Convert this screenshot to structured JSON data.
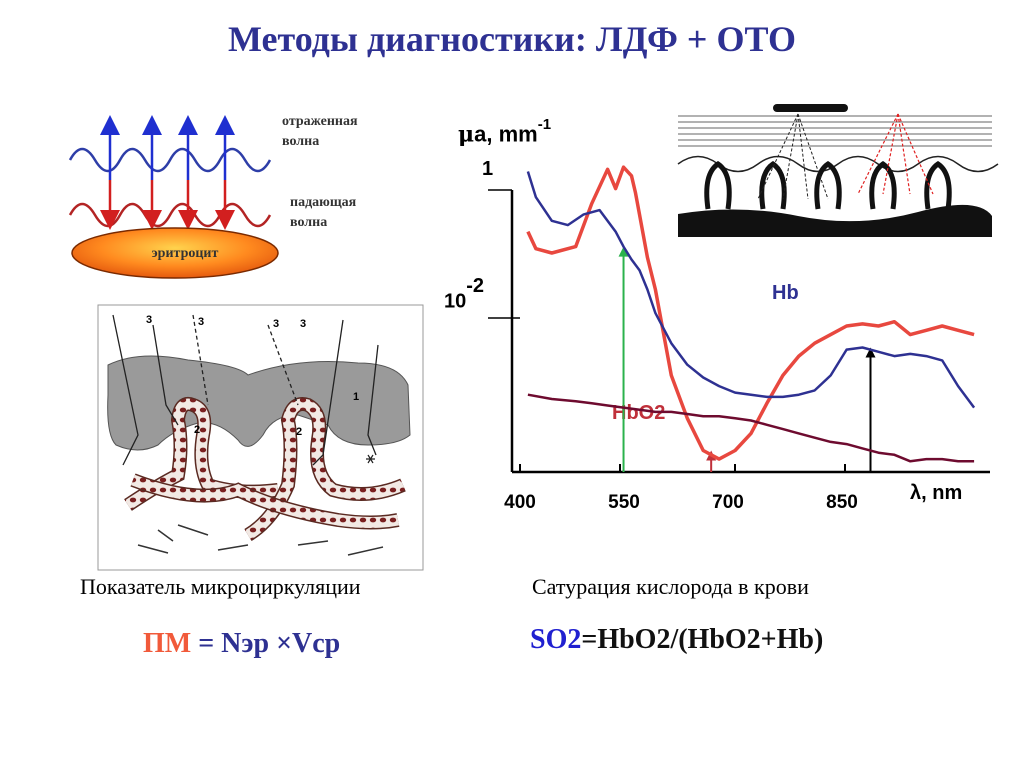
{
  "title": "Методы диагностики:  ЛДФ + ОТО",
  "wave_diagram": {
    "reflected_label_line1": "отраженная",
    "reflected_label_line2": "волна",
    "incident_label_line1": "падающая",
    "incident_label_line2": "волна",
    "cell_label": "эритроцит"
  },
  "tissue_diagram": {
    "labels": [
      "3",
      "3",
      "3",
      "3",
      "2",
      "2",
      "1"
    ]
  },
  "chart": {
    "y_label_symbol": "μ",
    "y_label_main": "a, mm",
    "y_label_exp": "-1",
    "y_tick_1": "1",
    "y_tick_2_base": "10",
    "y_tick_2_exp": "-2",
    "x_ticks": [
      "400",
      "550",
      "700",
      "850"
    ],
    "x_label": "λ, nm",
    "series_labels": {
      "hb": "Hb",
      "hbo2": "HbO2"
    }
  },
  "chart_data": {
    "type": "line",
    "xlabel": "λ, nm",
    "ylabel": "μa, mm-1",
    "x_range": [
      400,
      1000
    ],
    "y_range": [
      0,
      1.5
    ],
    "series": [
      {
        "name": "HbO2",
        "color": "#e8483f",
        "x": [
          420,
          430,
          450,
          480,
          500,
          520,
          530,
          540,
          550,
          555,
          560,
          570,
          580,
          600,
          620,
          640,
          660,
          680,
          700,
          720,
          740,
          760,
          780,
          800,
          820,
          840,
          860,
          880,
          900,
          920,
          940,
          960,
          980
        ],
        "y": [
          1.12,
          1.04,
          1.02,
          1.05,
          1.25,
          1.41,
          1.32,
          1.42,
          1.38,
          1.3,
          1.2,
          1.0,
          0.85,
          0.45,
          0.25,
          0.1,
          0.06,
          0.1,
          0.18,
          0.32,
          0.45,
          0.54,
          0.6,
          0.64,
          0.68,
          0.69,
          0.68,
          0.7,
          0.64,
          0.66,
          0.68,
          0.66,
          0.64
        ]
      },
      {
        "name": "Hb",
        "color": "#2e3192",
        "x": [
          420,
          430,
          450,
          470,
          490,
          510,
          530,
          540,
          550,
          560,
          570,
          580,
          600,
          620,
          640,
          660,
          680,
          700,
          720,
          740,
          760,
          780,
          800,
          820,
          840,
          860,
          880,
          900,
          920,
          940,
          960,
          980
        ],
        "y": [
          1.4,
          1.28,
          1.17,
          1.15,
          1.2,
          1.22,
          1.12,
          1.05,
          0.99,
          0.94,
          0.85,
          0.74,
          0.6,
          0.5,
          0.44,
          0.4,
          0.37,
          0.36,
          0.35,
          0.35,
          0.36,
          0.38,
          0.45,
          0.57,
          0.58,
          0.56,
          0.54,
          0.55,
          0.54,
          0.52,
          0.4,
          0.3
        ]
      },
      {
        "name": "",
        "color": "#6e0b2f",
        "x": [
          420,
          450,
          480,
          500,
          520,
          540,
          560,
          580,
          600,
          620,
          640,
          660,
          680,
          700,
          720,
          740,
          760,
          780,
          800,
          820,
          840,
          860,
          880,
          900,
          920,
          940,
          960,
          980
        ],
        "y": [
          0.36,
          0.34,
          0.33,
          0.32,
          0.31,
          0.3,
          0.29,
          0.28,
          0.28,
          0.27,
          0.26,
          0.26,
          0.25,
          0.24,
          0.22,
          0.2,
          0.18,
          0.16,
          0.14,
          0.13,
          0.11,
          0.09,
          0.08,
          0.05,
          0.06,
          0.06,
          0.05,
          0.05
        ]
      }
    ],
    "markers": [
      {
        "x": 540,
        "color": "#2bb24c"
      },
      {
        "x": 650,
        "color": "#c0303a"
      },
      {
        "x": 850,
        "color": "#000000"
      }
    ]
  },
  "bottom": {
    "left_caption": "Показатель микроциркуляции",
    "right_caption": "Сатурация кислорода в крови",
    "pm_label": "ПМ",
    "pm_rest": " = Nэр ×Vср",
    "so2_label": "SO2",
    "so2_rest": "=HbO2/(HbO2+Hb)"
  }
}
